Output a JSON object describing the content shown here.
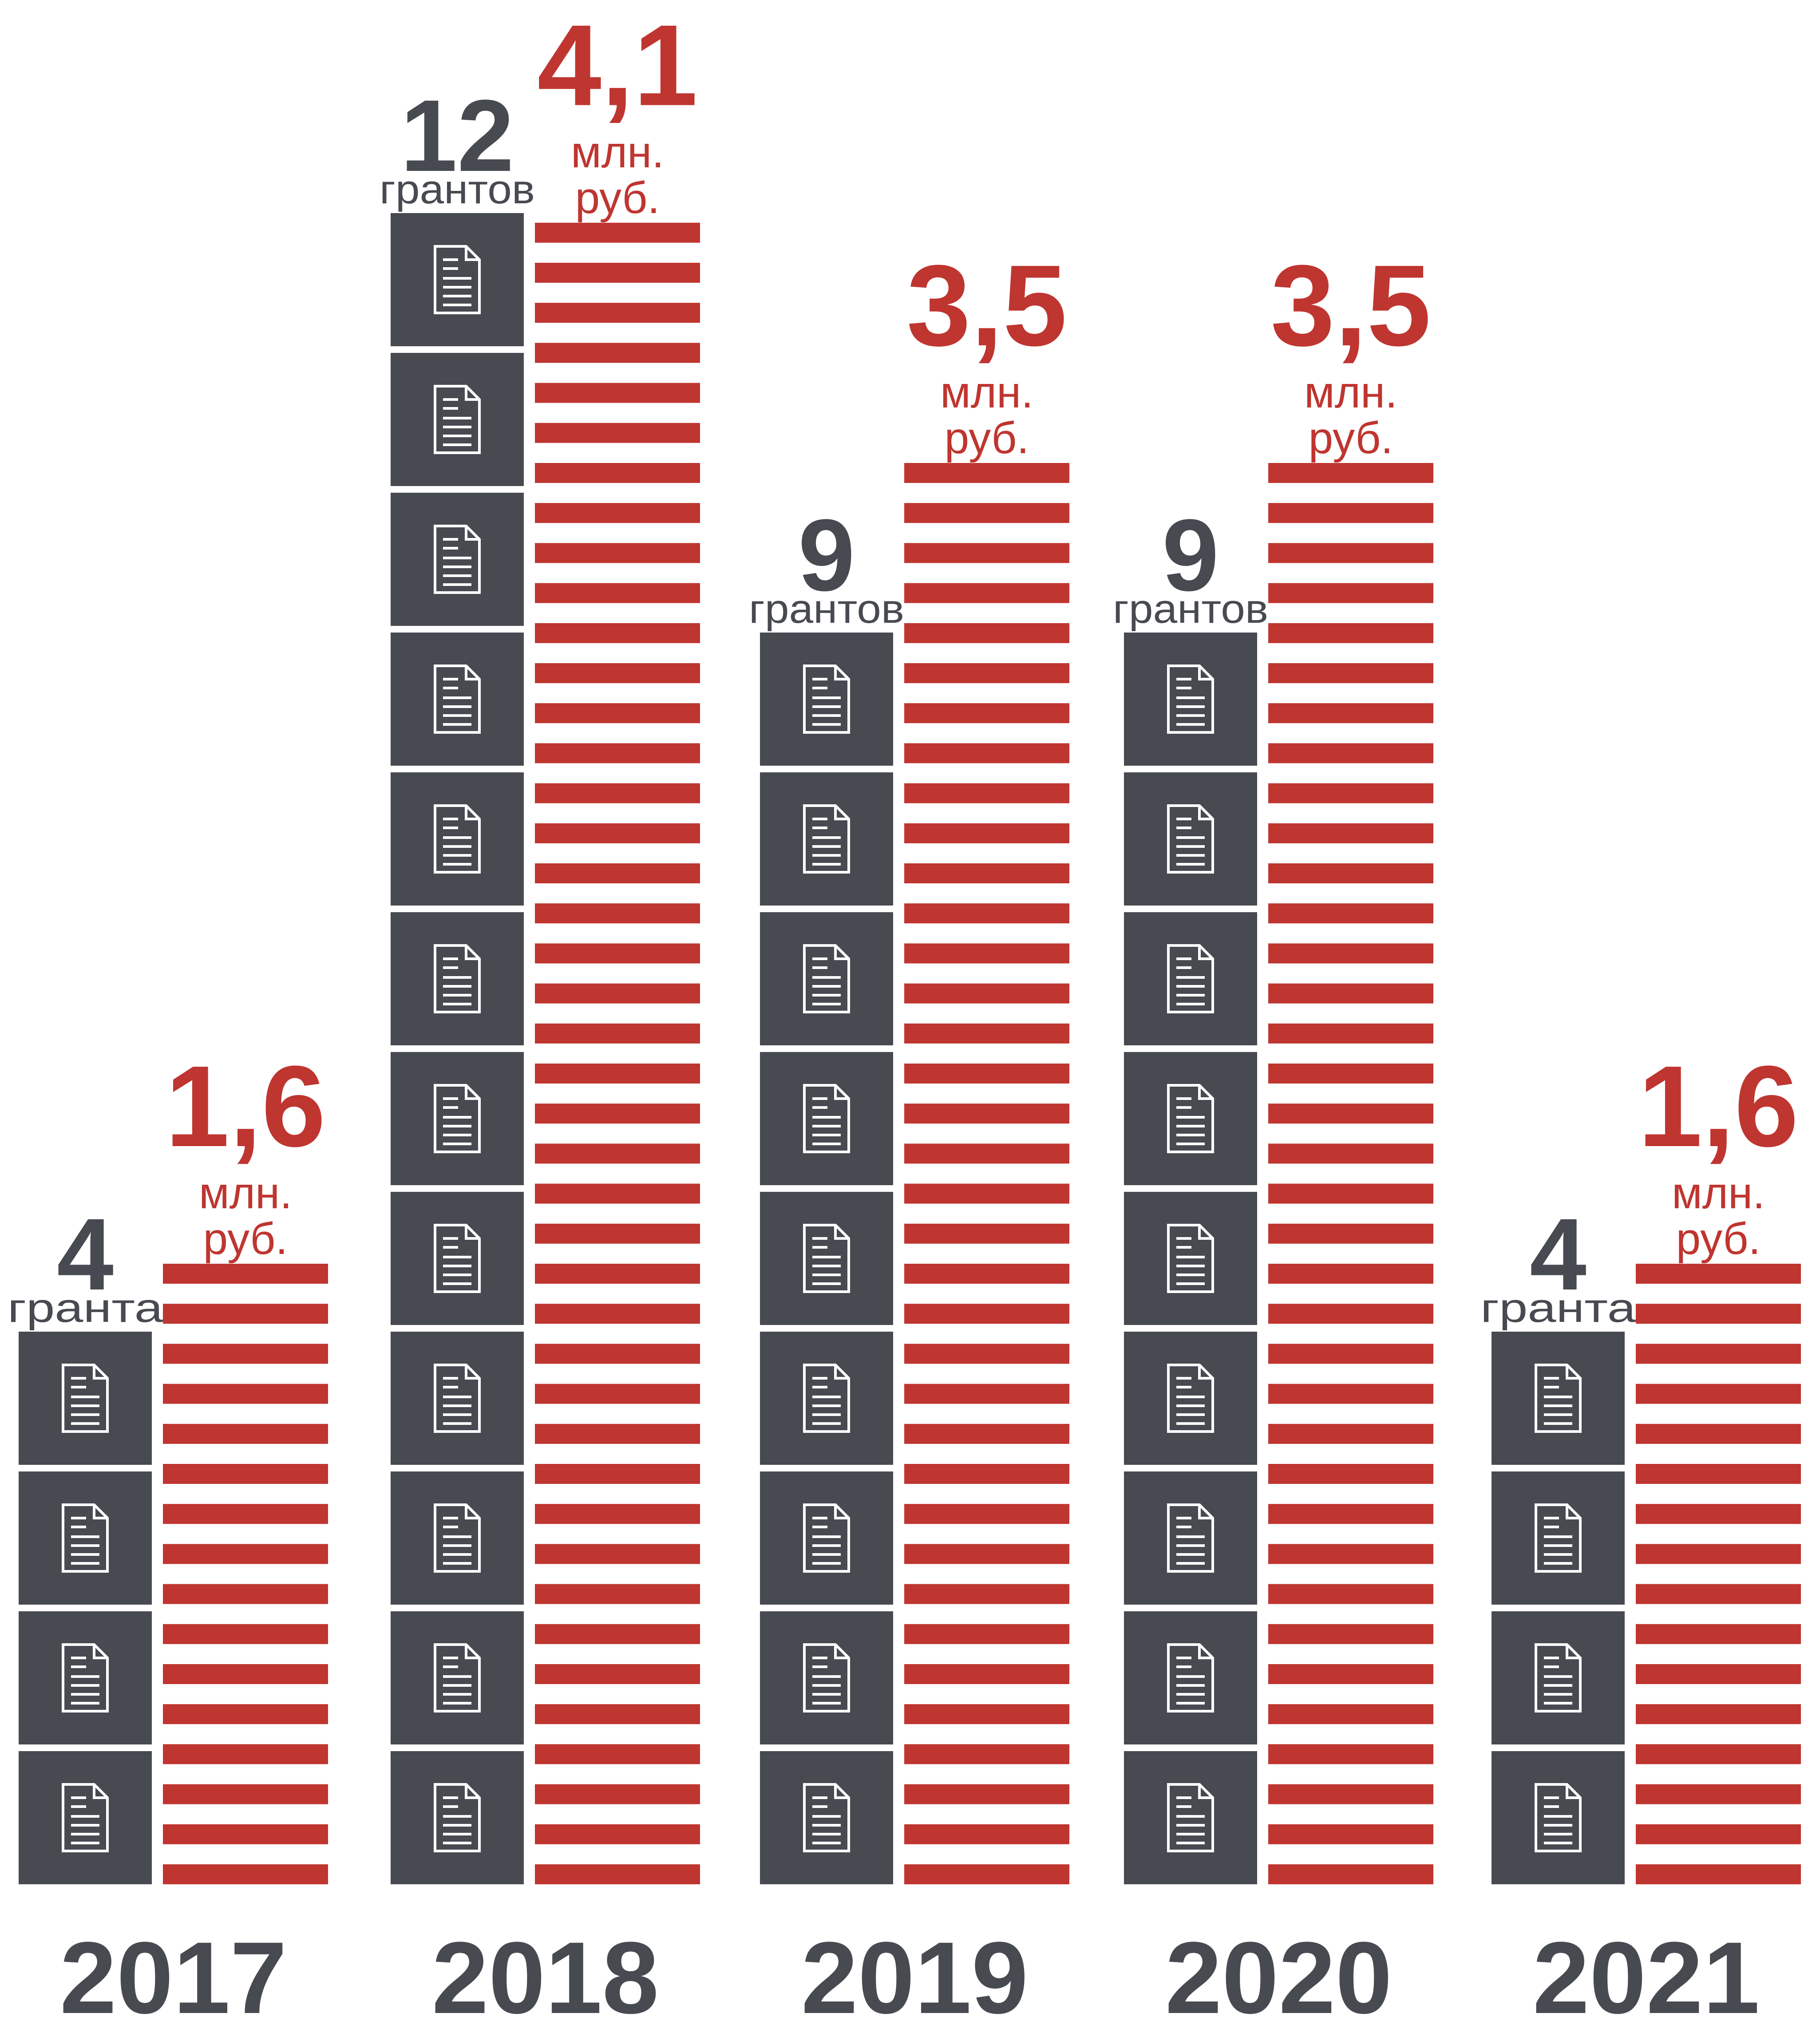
{
  "chart_data": {
    "type": "bar",
    "categories": [
      "2017",
      "2018",
      "2019",
      "2020",
      "2021"
    ],
    "series": [
      {
        "values": [
          4,
          12,
          9,
          9,
          4
        ],
        "value_labels": [
          "4",
          "12",
          "9",
          "9",
          "4"
        ],
        "unit_labels": [
          "гранта",
          "грантов",
          "грантов",
          "грантов",
          "гранта"
        ],
        "color": "#474a50",
        "icon": "document-icon"
      },
      {
        "values": [
          1.6,
          4.1,
          3.5,
          3.5,
          1.6
        ],
        "value_labels": [
          "1,6",
          "4,1",
          "3,5",
          "3,5",
          "1,6"
        ],
        "unit_line1": "млн.",
        "unit_line2": "руб.",
        "color": "#bf3530"
      }
    ]
  }
}
